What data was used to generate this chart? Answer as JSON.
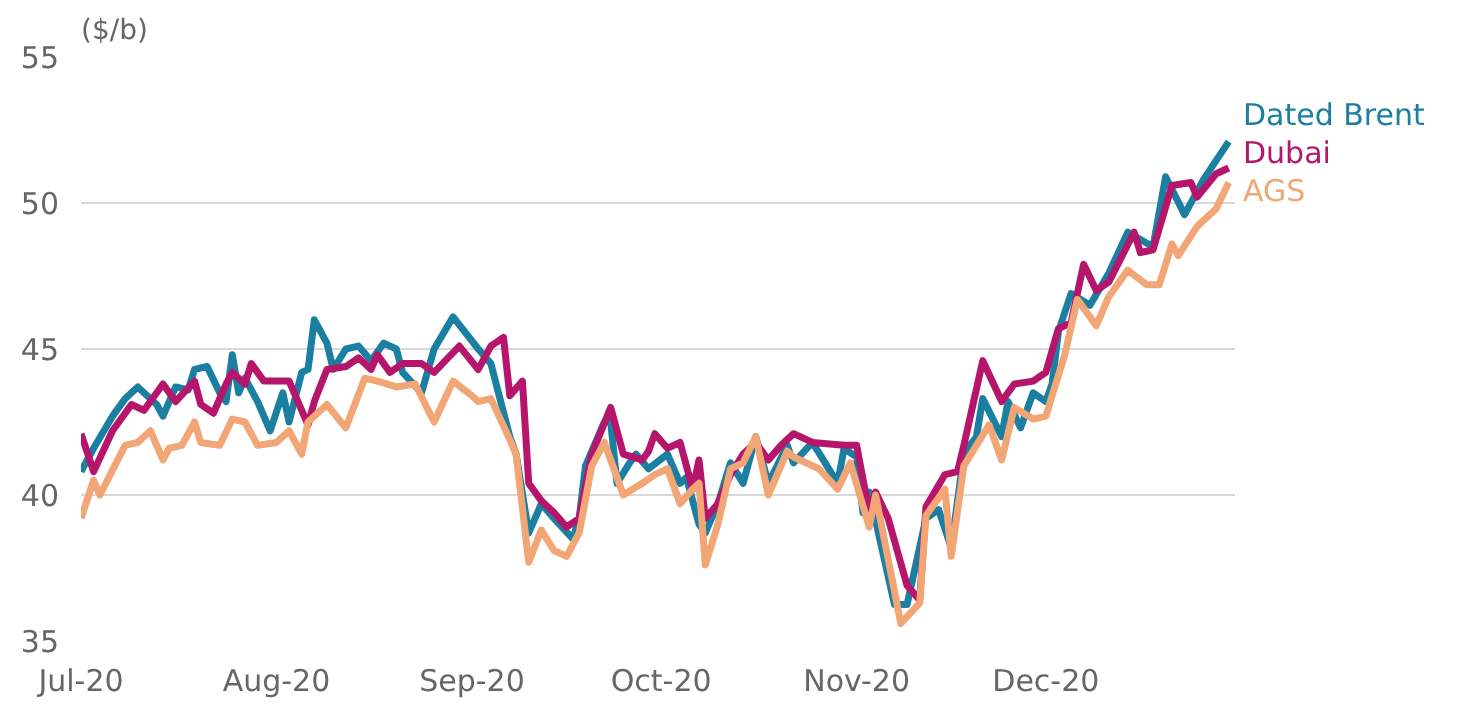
{
  "chart_data": {
    "type": "line",
    "ylabel": "($/b)",
    "xlim": [
      "2020-07-01",
      "2020-12-31"
    ],
    "xticks": [
      {
        "value": "2020-07-01",
        "label": "Jul-20"
      },
      {
        "value": "2020-08-01",
        "label": "Aug-20"
      },
      {
        "value": "2020-09-01",
        "label": "Sep-20"
      },
      {
        "value": "2020-10-01",
        "label": "Oct-20"
      },
      {
        "value": "2020-11-01",
        "label": "Nov-20"
      },
      {
        "value": "2020-12-01",
        "label": "Dec-20"
      }
    ],
    "ylim": [
      35,
      55
    ],
    "yticks": [
      35,
      40,
      45,
      50,
      55
    ],
    "grid": "y",
    "legend": false,
    "marker": "none",
    "line_style": "solid",
    "series": [
      {
        "name": "Dated Brent",
        "color": "#1a7fa0",
        "x": [
          "2020-07-01",
          "2020-07-03",
          "2020-07-06",
          "2020-07-08",
          "2020-07-10",
          "2020-07-13",
          "2020-07-14",
          "2020-07-16",
          "2020-07-18",
          "2020-07-19",
          "2020-07-21",
          "2020-07-23",
          "2020-07-24",
          "2020-07-25",
          "2020-07-26",
          "2020-07-27",
          "2020-07-29",
          "2020-07-31",
          "2020-08-02",
          "2020-08-03",
          "2020-08-05",
          "2020-08-06",
          "2020-08-07",
          "2020-08-09",
          "2020-08-10",
          "2020-08-12",
          "2020-08-14",
          "2020-08-16",
          "2020-08-18",
          "2020-08-20",
          "2020-08-21",
          "2020-08-24",
          "2020-08-26",
          "2020-08-29",
          "2020-09-02",
          "2020-09-04",
          "2020-09-07",
          "2020-09-08",
          "2020-09-10",
          "2020-09-12",
          "2020-09-14",
          "2020-09-17",
          "2020-09-18",
          "2020-09-19",
          "2020-09-22",
          "2020-09-23",
          "2020-09-24",
          "2020-09-26",
          "2020-09-27",
          "2020-09-29",
          "2020-10-02",
          "2020-10-04",
          "2020-10-05",
          "2020-10-07",
          "2020-10-08",
          "2020-10-10",
          "2020-10-12",
          "2020-10-14",
          "2020-10-16",
          "2020-10-18",
          "2020-10-21",
          "2020-10-22",
          "2020-10-25",
          "2020-10-29",
          "2020-10-30",
          "2020-11-01",
          "2020-11-02",
          "2020-11-03",
          "2020-11-07",
          "2020-11-09",
          "2020-11-12",
          "2020-11-14",
          "2020-11-16",
          "2020-11-18",
          "2020-11-20",
          "2020-11-21",
          "2020-11-24",
          "2020-11-25",
          "2020-11-27",
          "2020-11-29",
          "2020-12-01",
          "2020-12-02",
          "2020-12-03",
          "2020-12-05",
          "2020-12-08",
          "2020-12-11",
          "2020-12-14",
          "2020-12-18",
          "2020-12-20",
          "2020-12-23",
          "2020-12-26",
          "2020-12-30"
        ],
        "values": [
          40.8,
          41.6,
          42.7,
          43.3,
          43.7,
          43.1,
          42.7,
          43.7,
          43.6,
          44.3,
          44.4,
          43.5,
          43.2,
          44.8,
          43.5,
          44.0,
          43.2,
          42.2,
          43.5,
          42.5,
          44.2,
          44.3,
          46.0,
          45.2,
          44.3,
          45.0,
          45.1,
          44.6,
          45.2,
          45.0,
          44.2,
          43.5,
          45.0,
          46.1,
          45.0,
          44.5,
          42.0,
          41.4,
          38.7,
          39.7,
          39.2,
          38.5,
          39.2,
          41.0,
          42.5,
          42.5,
          40.4,
          41.1,
          41.4,
          40.9,
          41.4,
          40.4,
          40.6,
          39.0,
          38.7,
          39.7,
          41.1,
          40.4,
          42.0,
          40.4,
          41.7,
          41.1,
          41.8,
          40.4,
          41.6,
          41.3,
          39.4,
          40.1,
          36.25,
          36.25,
          39.2,
          39.5,
          38.2,
          41.4,
          42.0,
          43.3,
          42.0,
          43.2,
          42.3,
          43.5,
          43.2,
          43.8,
          45.6,
          46.9,
          46.5,
          47.6,
          49.0,
          48.5,
          50.9,
          49.6,
          50.8,
          52.1
        ]
      },
      {
        "name": "Dubai",
        "color": "#b5156b",
        "x": [
          "2020-07-01",
          "2020-07-03",
          "2020-07-06",
          "2020-07-09",
          "2020-07-11",
          "2020-07-14",
          "2020-07-16",
          "2020-07-19",
          "2020-07-20",
          "2020-07-22",
          "2020-07-24",
          "2020-07-25",
          "2020-07-27",
          "2020-07-28",
          "2020-07-30",
          "2020-08-03",
          "2020-08-06",
          "2020-08-07",
          "2020-08-09",
          "2020-08-12",
          "2020-08-14",
          "2020-08-16",
          "2020-08-17",
          "2020-08-19",
          "2020-08-21",
          "2020-08-24",
          "2020-08-26",
          "2020-08-30",
          "2020-09-02",
          "2020-09-04",
          "2020-09-06",
          "2020-09-07",
          "2020-09-09",
          "2020-09-10",
          "2020-09-12",
          "2020-09-14",
          "2020-09-16",
          "2020-09-18",
          "2020-09-20",
          "2020-09-23",
          "2020-09-25",
          "2020-09-28",
          "2020-09-29",
          "2020-09-30",
          "2020-10-02",
          "2020-10-04",
          "2020-10-06",
          "2020-10-07",
          "2020-10-08",
          "2020-10-10",
          "2020-10-12",
          "2020-10-14",
          "2020-10-16",
          "2020-10-18",
          "2020-10-20",
          "2020-10-22",
          "2020-10-25",
          "2020-10-30",
          "2020-11-01",
          "2020-11-03",
          "2020-11-04",
          "2020-11-06",
          "2020-11-09",
          "2020-11-11",
          "2020-11-12",
          "2020-11-15",
          "2020-11-17",
          "2020-11-18",
          "2020-11-21",
          "2020-11-24",
          "2020-11-26",
          "2020-11-29",
          "2020-12-01",
          "2020-12-03",
          "2020-12-05",
          "2020-12-07",
          "2020-12-09",
          "2020-12-11",
          "2020-12-15",
          "2020-12-16",
          "2020-12-18",
          "2020-12-21",
          "2020-12-24",
          "2020-12-25",
          "2020-12-28",
          "2020-12-30"
        ],
        "values": [
          42.1,
          40.8,
          42.2,
          43.1,
          42.9,
          43.8,
          43.2,
          43.9,
          43.1,
          42.8,
          43.8,
          44.2,
          43.8,
          44.5,
          43.9,
          43.9,
          42.4,
          43.2,
          44.3,
          44.4,
          44.7,
          44.3,
          44.8,
          44.2,
          44.5,
          44.5,
          44.2,
          45.1,
          44.3,
          45.1,
          45.4,
          43.4,
          43.9,
          40.4,
          39.8,
          39.4,
          38.9,
          39.2,
          41.4,
          43.0,
          41.4,
          41.2,
          41.5,
          42.1,
          41.6,
          41.8,
          40.2,
          41.2,
          39.2,
          39.7,
          40.7,
          41.4,
          41.8,
          41.2,
          41.7,
          42.1,
          41.8,
          41.7,
          41.7,
          39.4,
          40.1,
          39.2,
          36.9,
          36.4,
          39.6,
          40.7,
          40.8,
          41.7,
          44.6,
          43.2,
          43.8,
          43.9,
          44.2,
          45.7,
          45.9,
          47.9,
          47.0,
          47.3,
          49.0,
          48.3,
          48.4,
          50.6,
          50.7,
          50.2,
          51.0,
          51.2
        ]
      },
      {
        "name": "AGS",
        "color": "#f2a675",
        "x": [
          "2020-07-01",
          "2020-07-03",
          "2020-07-04",
          "2020-07-08",
          "2020-07-10",
          "2020-07-12",
          "2020-07-14",
          "2020-07-15",
          "2020-07-17",
          "2020-07-19",
          "2020-07-20",
          "2020-07-23",
          "2020-07-25",
          "2020-07-27",
          "2020-07-29",
          "2020-08-01",
          "2020-08-03",
          "2020-08-05",
          "2020-08-06",
          "2020-08-09",
          "2020-08-12",
          "2020-08-15",
          "2020-08-17",
          "2020-08-20",
          "2020-08-23",
          "2020-08-26",
          "2020-08-29",
          "2020-09-01",
          "2020-09-02",
          "2020-09-04",
          "2020-09-07",
          "2020-09-08",
          "2020-09-10",
          "2020-09-12",
          "2020-09-14",
          "2020-09-16",
          "2020-09-18",
          "2020-09-20",
          "2020-09-22",
          "2020-09-25",
          "2020-09-28",
          "2020-09-30",
          "2020-10-02",
          "2020-10-04",
          "2020-10-06",
          "2020-10-07",
          "2020-10-08",
          "2020-10-10",
          "2020-10-12",
          "2020-10-14",
          "2020-10-16",
          "2020-10-18",
          "2020-10-21",
          "2020-10-22",
          "2020-10-26",
          "2020-10-29",
          "2020-10-31",
          "2020-11-03",
          "2020-11-04",
          "2020-11-08",
          "2020-11-11",
          "2020-11-12",
          "2020-11-15",
          "2020-11-16",
          "2020-11-18",
          "2020-11-22",
          "2020-11-24",
          "2020-11-26",
          "2020-11-29",
          "2020-12-01",
          "2020-12-04",
          "2020-12-06",
          "2020-12-09",
          "2020-12-11",
          "2020-12-14",
          "2020-12-17",
          "2020-12-19",
          "2020-12-21",
          "2020-12-22",
          "2020-12-25",
          "2020-12-28",
          "2020-12-30"
        ],
        "values": [
          39.2,
          40.5,
          40.0,
          41.7,
          41.8,
          42.2,
          41.2,
          41.6,
          41.7,
          42.5,
          41.8,
          41.7,
          42.6,
          42.5,
          41.7,
          41.8,
          42.2,
          41.4,
          42.5,
          43.1,
          42.3,
          44.0,
          43.9,
          43.7,
          43.8,
          42.5,
          43.9,
          43.4,
          43.2,
          43.3,
          41.9,
          41.4,
          37.7,
          38.8,
          38.1,
          37.9,
          38.7,
          41.0,
          41.8,
          40.0,
          40.4,
          40.7,
          40.9,
          39.7,
          40.2,
          40.4,
          37.6,
          39.0,
          40.9,
          41.1,
          42.0,
          40.0,
          41.5,
          41.3,
          40.9,
          40.2,
          41.1,
          38.9,
          40.0,
          35.6,
          36.3,
          39.3,
          40.2,
          37.9,
          41.0,
          42.4,
          41.2,
          43.0,
          42.6,
          42.7,
          44.8,
          46.7,
          45.8,
          46.8,
          47.7,
          47.2,
          47.2,
          48.6,
          48.2,
          49.2,
          49.8,
          50.7
        ]
      }
    ]
  }
}
